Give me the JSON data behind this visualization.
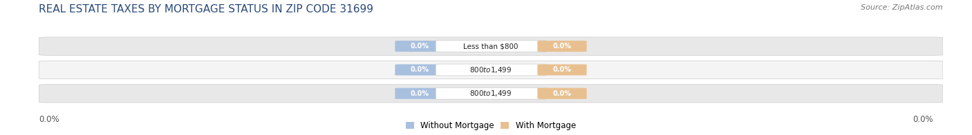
{
  "title": "REAL ESTATE TAXES BY MORTGAGE STATUS IN ZIP CODE 31699",
  "source": "Source: ZipAtlas.com",
  "categories": [
    "Less than $800",
    "$800 to $1,499",
    "$800 to $1,499"
  ],
  "without_mortgage": [
    0.0,
    0.0,
    0.0
  ],
  "with_mortgage": [
    0.0,
    0.0,
    0.0
  ],
  "bar_color_left": "#a8c0de",
  "bar_color_right": "#e8c090",
  "background_bar_color_odd": "#e8e8e8",
  "background_bar_color_even": "#f4f4f4",
  "label_left": "Without Mortgage",
  "label_right": "With Mortgage",
  "title_fontsize": 11,
  "source_fontsize": 8,
  "axis_label_value_left": "0.0%",
  "axis_label_value_right": "0.0%",
  "figsize": [
    14.06,
    1.96
  ],
  "dpi": 100
}
